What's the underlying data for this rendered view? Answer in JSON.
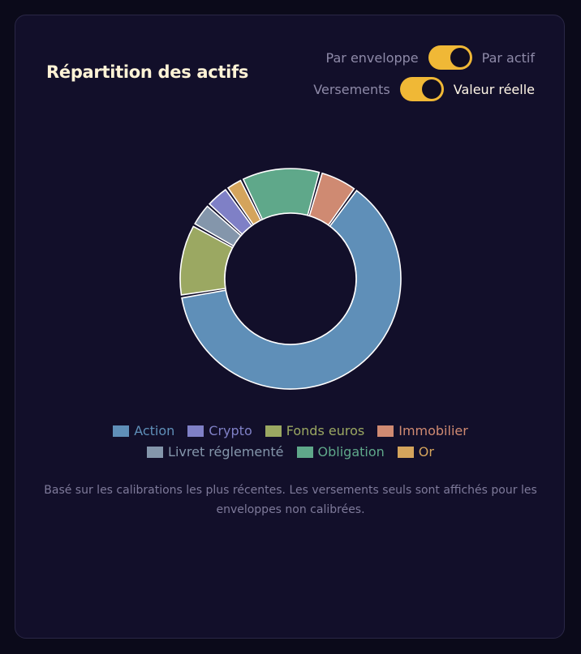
{
  "card": {
    "title": "Répartition des actifs",
    "toggle_view": {
      "left_label": "Par enveloppe",
      "right_label": "Par actif",
      "state": "right"
    },
    "toggle_value": {
      "left_label": "Versements",
      "right_label": "Valeur réelle",
      "state": "right"
    },
    "footnote": "Basé sur les calibrations les plus récentes. Les versements seuls sont affichés pour les enveloppes non calibrées."
  },
  "colors": {
    "accent": "#f0b836",
    "background": "#120f2a",
    "slice_border": "#ffffff"
  },
  "chart_data": {
    "type": "pie",
    "variant": "donut",
    "title": "Répartition des actifs",
    "categories": [
      "Action",
      "Fonds euros",
      "Livret réglementé",
      "Crypto",
      "Or",
      "Obligation",
      "Immobilier"
    ],
    "values": [
      61.5,
      10.5,
      3.5,
      3.5,
      2.5,
      11.5,
      5.5
    ],
    "colors": [
      "#5f8fb8",
      "#9ba862",
      "#8496ab",
      "#7f80c6",
      "#d4a45c",
      "#5fa88a",
      "#cf8a72"
    ],
    "start_angle_deg": 36,
    "legend": {
      "placement": "bottom",
      "lines": [
        [
          {
            "label": "Action",
            "color": "#5f8fb8"
          },
          {
            "label": "Crypto",
            "color": "#7f80c6"
          },
          {
            "label": "Fonds euros",
            "color": "#9ba862"
          },
          {
            "label": "Immobilier",
            "color": "#cf8a72"
          }
        ],
        [
          {
            "label": "Livret réglementé",
            "color": "#8496ab"
          },
          {
            "label": "Obligation",
            "color": "#5fa88a"
          },
          {
            "label": "Or",
            "color": "#d4a45c"
          }
        ]
      ]
    }
  }
}
